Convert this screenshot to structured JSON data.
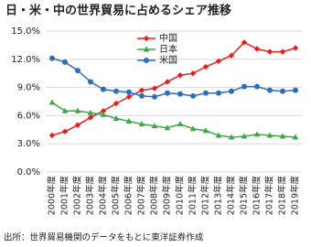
{
  "chart_data": {
    "type": "line",
    "title": "日・米・中の世界貿易に占めるシェア推移",
    "source": "出所：世界貿易機関のデータをもとに東洋証券作成",
    "categories": [
      "2000年度",
      "2001年度",
      "2002年度",
      "2003年度",
      "2004年度",
      "2005年度",
      "2006年度",
      "2007年度",
      "2008年度",
      "2009年度",
      "2010年度",
      "2011年度",
      "2012年度",
      "2013年度",
      "2014年度",
      "2015年度",
      "2016年度",
      "2017年度",
      "2018年度",
      "2019年度"
    ],
    "series": [
      {
        "name": "中国",
        "color": "#e3211c",
        "marker": "diamond",
        "values": [
          3.9,
          4.3,
          5.0,
          5.8,
          6.5,
          7.3,
          8.0,
          8.7,
          8.9,
          9.6,
          10.3,
          10.5,
          11.2,
          11.8,
          12.4,
          13.8,
          13.1,
          12.8,
          12.8,
          13.2
        ]
      },
      {
        "name": "日本",
        "color": "#3aa845",
        "marker": "triangle",
        "values": [
          7.4,
          6.5,
          6.5,
          6.3,
          6.1,
          5.7,
          5.4,
          5.1,
          4.9,
          4.7,
          5.1,
          4.6,
          4.4,
          3.9,
          3.7,
          3.8,
          4.0,
          3.9,
          3.8,
          3.7
        ]
      },
      {
        "name": "米国",
        "color": "#2c6fb7",
        "marker": "circle",
        "values": [
          12.1,
          11.7,
          10.8,
          9.6,
          8.8,
          8.6,
          8.5,
          8.1,
          8.0,
          8.4,
          8.3,
          8.1,
          8.4,
          8.4,
          8.6,
          9.1,
          9.1,
          8.7,
          8.6,
          8.7
        ]
      }
    ],
    "ylim": [
      0,
      15
    ],
    "yticks": [
      {
        "value": 0,
        "label": "0.0%"
      },
      {
        "value": 3,
        "label": "3.0%"
      },
      {
        "value": 6,
        "label": "6.0%"
      },
      {
        "value": 9,
        "label": "9.0%"
      },
      {
        "value": 12,
        "label": "12.0%"
      },
      {
        "value": 15,
        "label": "15.0%"
      }
    ],
    "grid": true,
    "legend": "upper center"
  }
}
